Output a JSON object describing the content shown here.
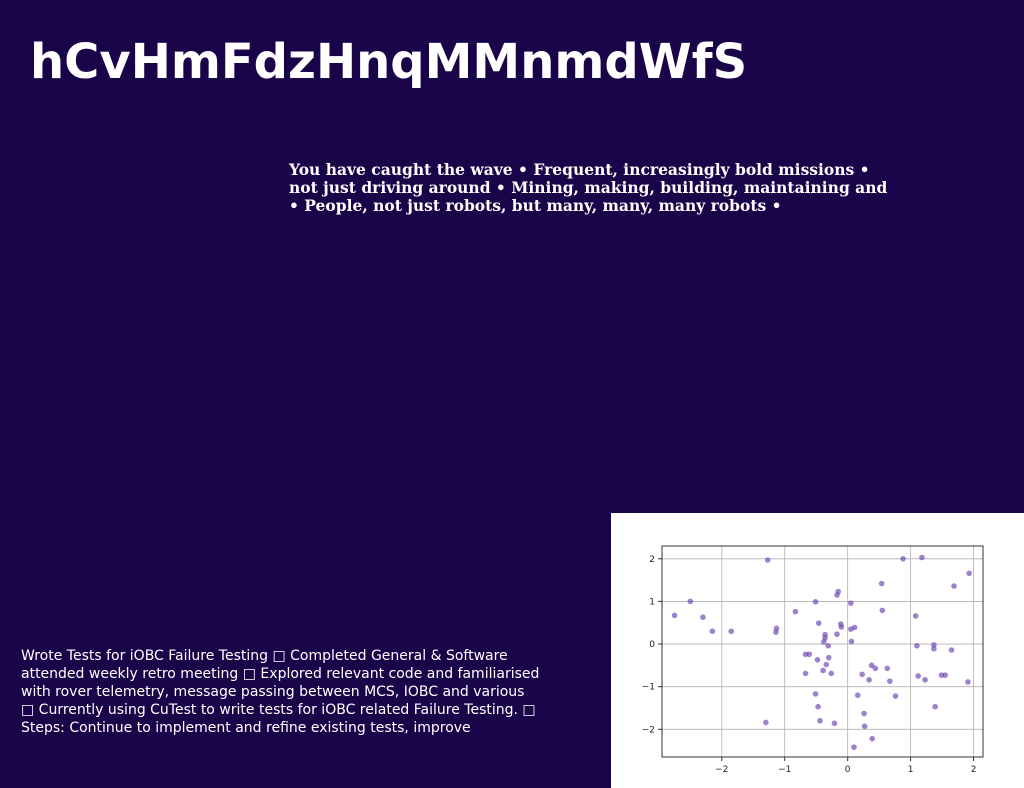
{
  "slide": {
    "title": "hCvHmFdzHnqMMnmdWfS",
    "blurb_lines": [
      "You have caught the wave • Frequent, increasingly bold missions •",
      "not just driving around • Mining, making, building, maintaining and",
      "• People, not just robots, but many, many, many robots •"
    ],
    "notes_lines": [
      "Wrote Tests for iOBC Failure Testing □ Completed General & Software",
      "attended weekly retro meeting □ Explored relevant code and familiarised",
      "with rover telemetry, message passing between MCS, IOBC and various",
      "□ Currently using CuTest to write tests for iOBC related Failure Testing. □",
      "Steps: Continue to implement and refine existing tests, improve"
    ],
    "colors": {
      "background": "#1a0449",
      "text": "#ffffff",
      "marker": "#6a3fb0"
    }
  },
  "chart_data": {
    "type": "scatter",
    "title": "",
    "xlabel": "",
    "ylabel": "",
    "xlim": [
      -2.95,
      2.15
    ],
    "ylim": [
      -2.65,
      2.3
    ],
    "xticks": [
      -2,
      -1,
      0,
      1,
      2
    ],
    "yticks": [
      -2,
      -1,
      0,
      1,
      2
    ],
    "xtick_labels": [
      "−2",
      "−1",
      "0",
      "1",
      "2"
    ],
    "ytick_labels": [
      "−2",
      "−1",
      "0",
      "1",
      "2"
    ],
    "grid": true,
    "series": [
      {
        "points": [
          [
            -1.27,
            1.97
          ],
          [
            0.88,
            2.0
          ],
          [
            1.18,
            2.03
          ],
          [
            1.93,
            1.66
          ],
          [
            1.69,
            1.36
          ],
          [
            0.54,
            1.42
          ],
          [
            -0.15,
            1.23
          ],
          [
            -0.17,
            1.15
          ],
          [
            -0.51,
            0.99
          ],
          [
            0.05,
            0.96
          ],
          [
            -2.5,
            1.0
          ],
          [
            -2.75,
            0.67
          ],
          [
            -2.3,
            0.63
          ],
          [
            -2.15,
            0.3
          ],
          [
            -1.85,
            0.3
          ],
          [
            -1.13,
            0.37
          ],
          [
            -1.14,
            0.28
          ],
          [
            -0.83,
            0.76
          ],
          [
            -0.46,
            0.49
          ],
          [
            -0.11,
            0.47
          ],
          [
            -0.1,
            0.4
          ],
          [
            0.11,
            0.39
          ],
          [
            0.05,
            0.35
          ],
          [
            0.55,
            0.79
          ],
          [
            1.08,
            0.66
          ],
          [
            -0.17,
            0.23
          ],
          [
            -0.36,
            0.22
          ],
          [
            -0.36,
            0.14
          ],
          [
            -0.38,
            0.05
          ],
          [
            0.06,
            0.06
          ],
          [
            -0.31,
            -0.04
          ],
          [
            1.1,
            -0.04
          ],
          [
            1.37,
            -0.02
          ],
          [
            1.37,
            -0.11
          ],
          [
            1.65,
            -0.14
          ],
          [
            -0.67,
            -0.24
          ],
          [
            -0.61,
            -0.24
          ],
          [
            -0.3,
            -0.32
          ],
          [
            -0.48,
            -0.37
          ],
          [
            -0.34,
            -0.48
          ],
          [
            0.38,
            -0.5
          ],
          [
            0.44,
            -0.57
          ],
          [
            0.63,
            -0.57
          ],
          [
            -0.39,
            -0.62
          ],
          [
            -0.26,
            -0.69
          ],
          [
            -0.67,
            -0.69
          ],
          [
            0.23,
            -0.71
          ],
          [
            1.12,
            -0.75
          ],
          [
            1.49,
            -0.73
          ],
          [
            1.55,
            -0.73
          ],
          [
            0.34,
            -0.84
          ],
          [
            1.23,
            -0.84
          ],
          [
            0.67,
            -0.87
          ],
          [
            1.91,
            -0.89
          ],
          [
            -0.51,
            -1.17
          ],
          [
            0.16,
            -1.2
          ],
          [
            0.76,
            -1.22
          ],
          [
            1.39,
            -1.47
          ],
          [
            -0.47,
            -1.47
          ],
          [
            0.26,
            -1.63
          ],
          [
            -0.44,
            -1.8
          ],
          [
            -1.3,
            -1.84
          ],
          [
            -0.21,
            -1.86
          ],
          [
            0.27,
            -1.93
          ],
          [
            0.39,
            -2.22
          ],
          [
            0.1,
            -2.42
          ]
        ]
      }
    ]
  }
}
